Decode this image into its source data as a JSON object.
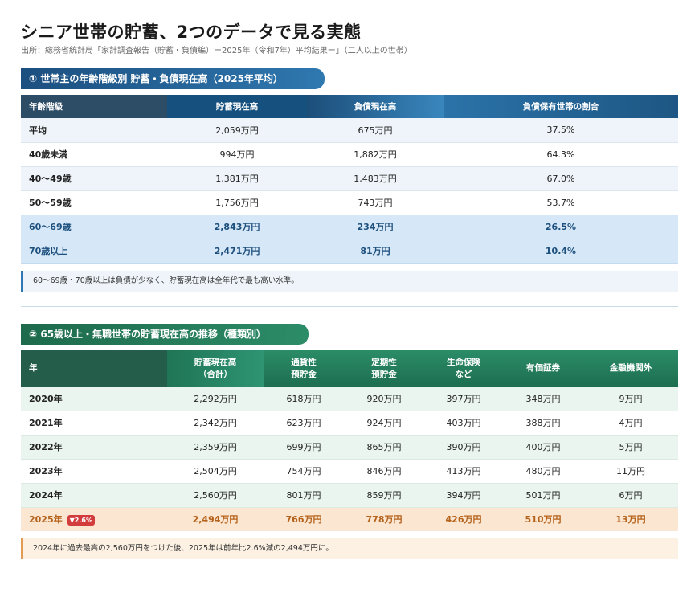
{
  "title": "シニア世帯の貯蓄、2つのデータで見る実態",
  "source": "出所：総務省統計局「家計調査報告（貯蓄・負債編）ー2025年（令和7年）平均結果ー」（二人以上の世帯）",
  "section1": {
    "label": "① 世帯主の年齢階級別 貯蓄・負債現在高（2025年平均）",
    "headers": [
      "年齢階級",
      "貯蓄現在高",
      "負債現在高",
      "負債保有世帯の割合"
    ],
    "rows": [
      [
        "平均",
        "2,059万円",
        "675万円",
        "37.5%"
      ],
      [
        "40歳未満",
        "994万円",
        "1,882万円",
        "64.3%"
      ],
      [
        "40〜49歳",
        "1,381万円",
        "1,483万円",
        "67.0%"
      ],
      [
        "50〜59歳",
        "1,756万円",
        "743万円",
        "53.7%"
      ],
      [
        "60〜69歳",
        "2,843万円",
        "234万円",
        "26.5%"
      ],
      [
        "70歳以上",
        "2,471万円",
        "81万円",
        "10.4%"
      ]
    ],
    "note": "60〜69歳・70歳以上は負債が少なく、貯蓄現在高は全年代で最も高い水準。"
  },
  "section2": {
    "label": "② 65歳以上・無職世帯の貯蓄現在高の推移（種類別）",
    "headers": [
      {
        "l1": "年",
        "l2": ""
      },
      {
        "l1": "貯蓄現在高",
        "l2": "（合計）"
      },
      {
        "l1": "通貨性",
        "l2": "預貯金"
      },
      {
        "l1": "定期性",
        "l2": "預貯金"
      },
      {
        "l1": "生命保険",
        "l2": "など"
      },
      {
        "l1": "有価証券",
        "l2": ""
      },
      {
        "l1": "金融機関外",
        "l2": ""
      }
    ],
    "rows": [
      [
        "2020年",
        "2,292万円",
        "618万円",
        "920万円",
        "397万円",
        "348万円",
        "9万円"
      ],
      [
        "2021年",
        "2,342万円",
        "623万円",
        "924万円",
        "403万円",
        "388万円",
        "4万円"
      ],
      [
        "2022年",
        "2,359万円",
        "699万円",
        "865万円",
        "390万円",
        "400万円",
        "5万円"
      ],
      [
        "2023年",
        "2,504万円",
        "754万円",
        "846万円",
        "413万円",
        "480万円",
        "11万円"
      ],
      [
        "2024年",
        "2,560万円",
        "801万円",
        "859万円",
        "394万円",
        "501万円",
        "6万円"
      ],
      [
        "2025年",
        "2,494万円",
        "766万円",
        "778万円",
        "426万円",
        "510万円",
        "13万円"
      ]
    ],
    "badge": "▼2.6%",
    "note": "2024年に過去最高の2,560万円をつけた後、2025年は前年比2.6%減の2,494万円に。"
  },
  "colors": {
    "blue_accent": "#1d4f7d",
    "green_accent": "#1d6e50",
    "highlight_orange": "#b5621b",
    "badge_red": "#d33c3c"
  }
}
